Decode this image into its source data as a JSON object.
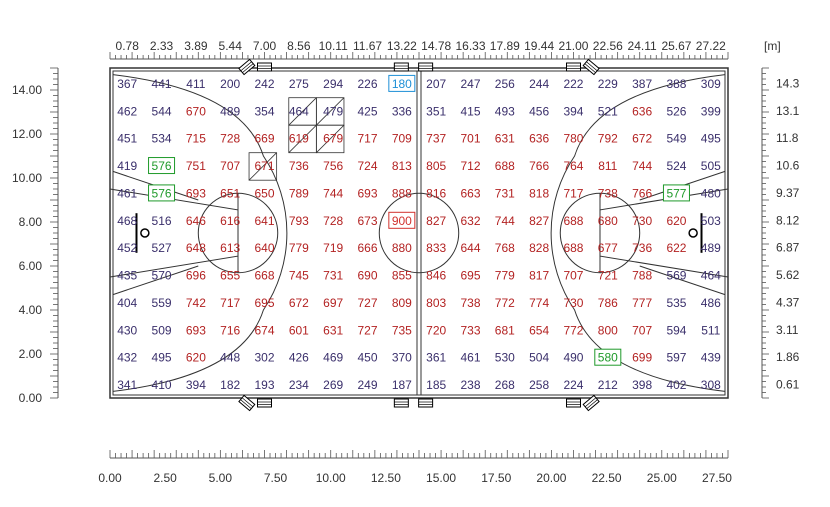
{
  "units_label": "[m]",
  "colors": {
    "low": "#3a2f6b",
    "high": "#b32222",
    "max": "#d0312d",
    "min": "#1e8fd6",
    "highlight": "#1f9a2a",
    "court": "#333333"
  },
  "chart_data": {
    "type": "heatmap",
    "top_ticks": [
      "0.78",
      "2.33",
      "3.89",
      "5.44",
      "7.00",
      "8.56",
      "10.11",
      "11.67",
      "13.22",
      "14.78",
      "16.33",
      "17.89",
      "19.44",
      "21.00",
      "22.56",
      "24.11",
      "25.67",
      "27.22"
    ],
    "right_ticks": [
      "14.3",
      "13.1",
      "11.8",
      "10.6",
      "9.37",
      "8.12",
      "6.87",
      "5.62",
      "4.37",
      "3.11",
      "1.86",
      "0.61"
    ],
    "left_ticks": [
      "14.00",
      "12.00",
      "10.00",
      "8.00",
      "6.00",
      "4.00",
      "2.00",
      "0.00"
    ],
    "bottom_ticks": [
      "0.00",
      "2.50",
      "5.00",
      "7.50",
      "10.00",
      "12.50",
      "15.00",
      "17.50",
      "20.00",
      "22.50",
      "25.00",
      "27.50"
    ],
    "x_range": [
      0,
      28
    ],
    "y_range": [
      0,
      15
    ],
    "rows": [
      [
        "367",
        "441",
        "411",
        "200",
        "242",
        "275",
        "294",
        "226",
        "180",
        "207",
        "247",
        "256",
        "244",
        "222",
        "229",
        "387",
        "388",
        "309"
      ],
      [
        "462",
        "544",
        "670",
        "489",
        "354",
        "464",
        "479",
        "425",
        "336",
        "351",
        "415",
        "493",
        "456",
        "394",
        "521",
        "636",
        "526",
        "399"
      ],
      [
        "451",
        "534",
        "715",
        "728",
        "669",
        "619",
        "679",
        "717",
        "709",
        "737",
        "701",
        "631",
        "636",
        "780",
        "792",
        "672",
        "549",
        "495"
      ],
      [
        "419",
        "576",
        "751",
        "707",
        "671",
        "736",
        "756",
        "724",
        "813",
        "805",
        "712",
        "688",
        "766",
        "764",
        "811",
        "744",
        "524",
        "505"
      ],
      [
        "461",
        "576",
        "693",
        "651",
        "650",
        "789",
        "744",
        "693",
        "888",
        "816",
        "663",
        "731",
        "818",
        "717",
        "738",
        "766",
        "577",
        "480"
      ],
      [
        "468",
        "516",
        "646",
        "616",
        "641",
        "793",
        "728",
        "673",
        "900",
        "827",
        "632",
        "744",
        "827",
        "688",
        "680",
        "730",
        "620",
        "503"
      ],
      [
        "452",
        "527",
        "648",
        "613",
        "640",
        "779",
        "719",
        "666",
        "880",
        "833",
        "644",
        "768",
        "828",
        "688",
        "677",
        "736",
        "622",
        "489"
      ],
      [
        "435",
        "570",
        "696",
        "655",
        "668",
        "745",
        "731",
        "690",
        "855",
        "846",
        "695",
        "779",
        "817",
        "707",
        "721",
        "788",
        "569",
        "464"
      ],
      [
        "404",
        "559",
        "742",
        "717",
        "695",
        "672",
        "697",
        "727",
        "809",
        "803",
        "738",
        "772",
        "774",
        "730",
        "786",
        "777",
        "535",
        "486"
      ],
      [
        "430",
        "509",
        "693",
        "716",
        "674",
        "601",
        "631",
        "727",
        "735",
        "720",
        "733",
        "681",
        "654",
        "772",
        "800",
        "707",
        "594",
        "511"
      ],
      [
        "432",
        "495",
        "620",
        "448",
        "302",
        "426",
        "469",
        "450",
        "370",
        "361",
        "461",
        "530",
        "504",
        "490",
        "580",
        "699",
        "597",
        "439"
      ],
      [
        "341",
        "410",
        "394",
        "182",
        "193",
        "234",
        "269",
        "249",
        "187",
        "185",
        "238",
        "268",
        "258",
        "224",
        "212",
        "398",
        "402",
        "308"
      ]
    ],
    "max_value": "900",
    "min_value": "180",
    "boxed_green": [
      "576",
      "576",
      "577",
      "580"
    ]
  }
}
